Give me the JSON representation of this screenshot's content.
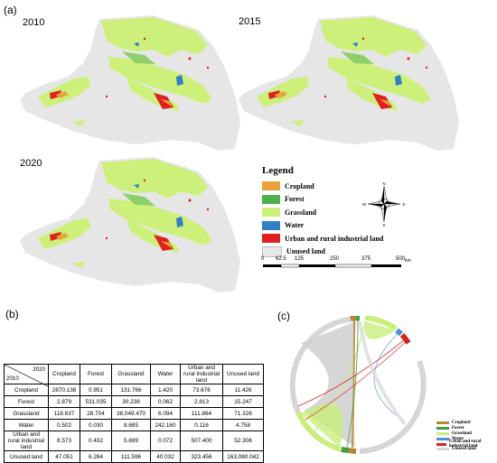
{
  "panel_labels": {
    "a": "(a)",
    "b": "(b)",
    "c": "(c)"
  },
  "maps": [
    {
      "year": "2010"
    },
    {
      "year": "2015"
    },
    {
      "year": "2020"
    }
  ],
  "legend": {
    "title": "Legend",
    "items": [
      {
        "label": "Cropland",
        "color": "#e8a33a"
      },
      {
        "label": "Forest",
        "color": "#4caf50"
      },
      {
        "label": "Grassland",
        "color": "#cdf07a"
      },
      {
        "label": "Water",
        "color": "#2f7fc1"
      },
      {
        "label": "Urban and rural industrial land",
        "color": "#e02020"
      },
      {
        "label": "Unused land",
        "color": "#e8e8e8"
      }
    ]
  },
  "compass": {
    "n": "N",
    "s": "S",
    "e": "E",
    "w": "W"
  },
  "scale_bar": {
    "ticks": [
      "0",
      "62.5",
      "125",
      "250",
      "375",
      "500"
    ],
    "unit": "km"
  },
  "transition_table": {
    "corner_top": "2020",
    "corner_bottom": "2010",
    "columns": [
      "Cropland",
      "Forest",
      "Grassland",
      "Water",
      "Urban and rural industrial land",
      "Unused land"
    ],
    "rows": [
      {
        "label": "Cropland",
        "values": [
          "2870.138",
          "0.951",
          "131.766",
          "1.420",
          "73.676",
          "11.426"
        ]
      },
      {
        "label": "Forest",
        "values": [
          "2.879",
          "531.035",
          "30.238",
          "0.062",
          "2.813",
          "15.247"
        ]
      },
      {
        "label": "Grassland",
        "values": [
          "118.637",
          "28.704",
          "38,049.470",
          "6.094",
          "111.864",
          "71.326"
        ]
      },
      {
        "label": "Water",
        "values": [
          "0.502",
          "0.030",
          "8.685",
          "242.160",
          "0.116",
          "4.758"
        ]
      },
      {
        "label": "Urban and rural industrial land",
        "values": [
          "8.573",
          "0.432",
          "5.699",
          "0.072",
          "507.400",
          "52.306"
        ]
      },
      {
        "label": "Unused land",
        "values": [
          "47.051",
          "6.284",
          "111.596",
          "40.032",
          "323.456",
          "163,080.042"
        ]
      }
    ]
  },
  "chord_legend": [
    {
      "label": "Cropland",
      "color": "#b8862e"
    },
    {
      "label": "Forest",
      "color": "#3f9d45"
    },
    {
      "label": "Grassland",
      "color": "#c8ef7c"
    },
    {
      "label": "Water",
      "color": "#4a8fd0"
    },
    {
      "label": "Urban and rural industrial land",
      "color": "#d42525"
    },
    {
      "label": "Unused land",
      "color": "#d6d6d6"
    }
  ]
}
